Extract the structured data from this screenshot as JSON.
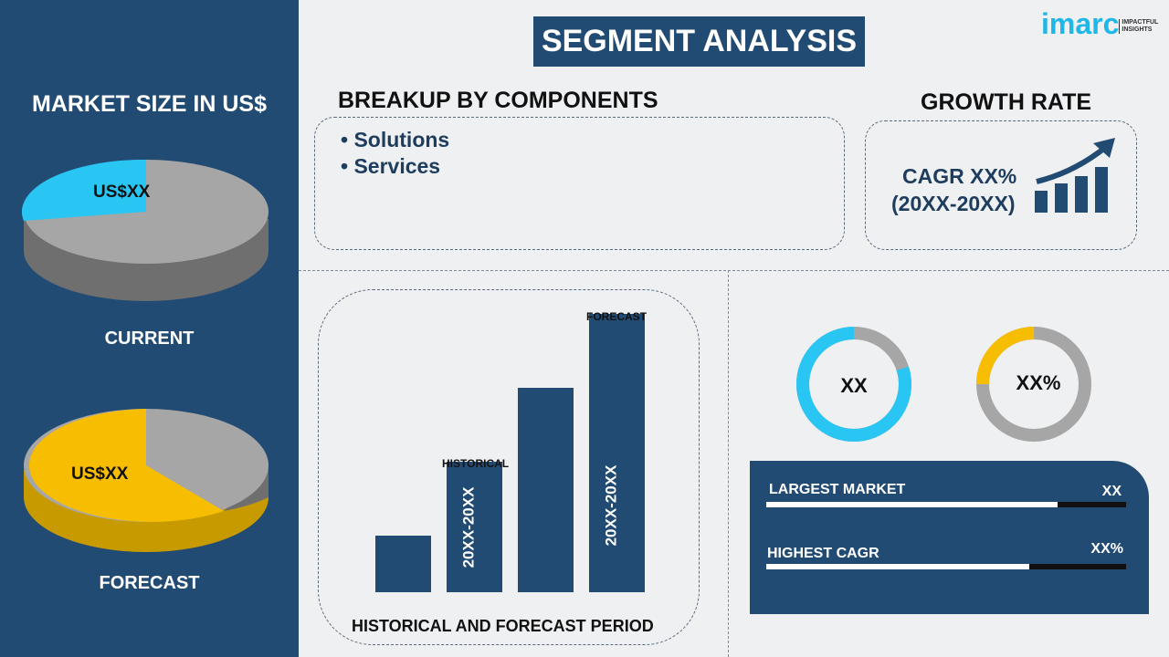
{
  "title": "SEGMENT ANALYSIS",
  "logo": {
    "brand": "imarc",
    "tagline": "IMPACTFUL INSIGHTS"
  },
  "left": {
    "heading": "MARKET SIZE IN US$",
    "current": {
      "label": "CURRENT",
      "value": "US$XX"
    },
    "forecast": {
      "label": "FORECAST",
      "value": "US$XX"
    }
  },
  "breakup": {
    "heading": "BREAKUP BY COMPONENTS",
    "items": [
      "• Solutions",
      "• Services"
    ]
  },
  "growth": {
    "heading": "GROWTH RATE",
    "cagr": "CAGR XX%",
    "period": "(20XX-20XX)"
  },
  "period_chart": {
    "title": "HISTORICAL AND FORECAST PERIOD",
    "historical": "HISTORICAL",
    "forecast": "FORECAST",
    "hist_range": "20XX-20XX",
    "fore_range": "20XX-20XX"
  },
  "donuts": [
    {
      "value": "XX",
      "fill_fraction": 0.8,
      "color": "#29c6f4"
    },
    {
      "value": "XX%",
      "fill_fraction": 0.25,
      "color": "#f7bd00"
    }
  ],
  "stats": [
    {
      "label": "LARGEST MARKET",
      "value": "XX",
      "fill_fraction": 0.81
    },
    {
      "label": "HIGHEST CAGR",
      "value": "XX%",
      "fill_fraction": 0.73
    }
  ],
  "colors": {
    "navy": "#224b74",
    "cyan": "#29c6f4",
    "yellow": "#f7bd00",
    "gray": "#a6a6a6"
  }
}
